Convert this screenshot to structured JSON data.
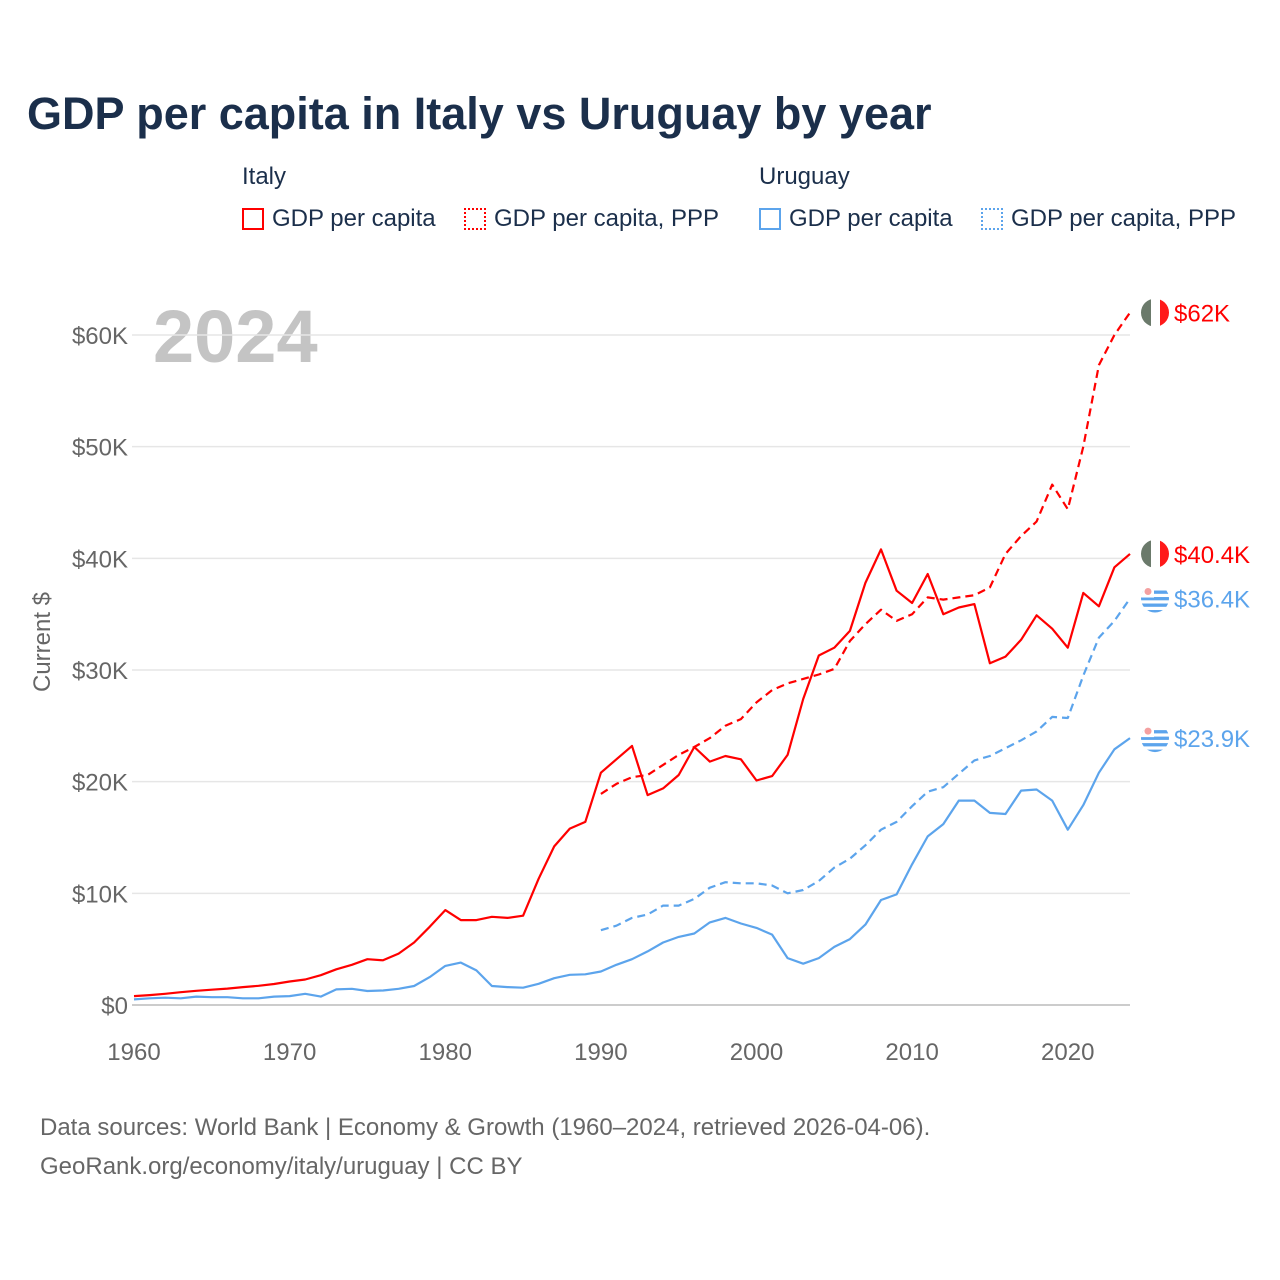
{
  "chart_data": {
    "type": "line",
    "title": "GDP per capita in Italy vs Uruguay by year",
    "ylabel": "Current $",
    "xlabel": "",
    "year_watermark": "2024",
    "xlim": [
      1960,
      2024
    ],
    "ylim": [
      0,
      62000
    ],
    "x_ticks": [
      1960,
      1970,
      1980,
      1990,
      2000,
      2010,
      2020
    ],
    "x_tick_labels": [
      "1960",
      "1970",
      "1980",
      "1990",
      "2000",
      "2010",
      "2020"
    ],
    "y_ticks": [
      0,
      10000,
      20000,
      30000,
      40000,
      50000,
      60000
    ],
    "y_tick_labels": [
      "$0",
      "$10K",
      "$20K",
      "$30K",
      "$40K",
      "$50K",
      "$60K"
    ],
    "grid": true,
    "legend": {
      "groups": [
        {
          "name": "Italy",
          "items": [
            "GDP per capita",
            "GDP per capita, PPP"
          ]
        },
        {
          "name": "Uruguay",
          "items": [
            "GDP per capita",
            "GDP per capita, PPP"
          ]
        }
      ]
    },
    "colors": {
      "Italy": "#ff0000",
      "Uruguay": "#5ca4ec"
    },
    "series": [
      {
        "name": "Italy GDP per capita",
        "country": "Italy",
        "dashed": false,
        "start_year": 1960,
        "end_label": "$40.4K",
        "values": [
          800,
          890,
          1000,
          1150,
          1270,
          1370,
          1470,
          1600,
          1720,
          1880,
          2100,
          2280,
          2670,
          3200,
          3600,
          4100,
          4000,
          4600,
          5600,
          7000,
          8500,
          7600,
          7600,
          7900,
          7800,
          8000,
          11300,
          14200,
          15800,
          16400,
          20800,
          22000,
          23200,
          18800,
          19400,
          20600,
          23100,
          21800,
          22300,
          22000,
          20100,
          20500,
          22400,
          27400,
          31300,
          32000,
          33500,
          37800,
          40800,
          37100,
          36000,
          38600,
          35000,
          35600,
          35900,
          30600,
          31200,
          32700,
          34900,
          33700,
          32000,
          36900,
          35700,
          39200,
          40400
        ]
      },
      {
        "name": "Italy GDP per capita, PPP",
        "country": "Italy",
        "dashed": true,
        "start_year": 1990,
        "end_label": "$62K",
        "values": [
          18900,
          19800,
          20400,
          20600,
          21500,
          22400,
          23100,
          23900,
          25000,
          25600,
          27100,
          28200,
          28800,
          29200,
          29600,
          30100,
          32600,
          34100,
          35400,
          34400,
          35000,
          36500,
          36300,
          36500,
          36700,
          37400,
          40400,
          42000,
          43300,
          46600,
          44400,
          50000,
          57300,
          60000,
          62000
        ]
      },
      {
        "name": "Uruguay GDP per capita",
        "country": "Uruguay",
        "dashed": false,
        "start_year": 1960,
        "end_label": "$23.9K",
        "values": [
          500,
          600,
          650,
          600,
          750,
          700,
          700,
          600,
          600,
          750,
          800,
          1000,
          750,
          1400,
          1450,
          1250,
          1300,
          1450,
          1700,
          2500,
          3500,
          3800,
          3100,
          1700,
          1600,
          1550,
          1900,
          2400,
          2700,
          2750,
          3000,
          3600,
          4100,
          4800,
          5600,
          6100,
          6400,
          7400,
          7800,
          7300,
          6900,
          6300,
          4200,
          3700,
          4200,
          5200,
          5900,
          7200,
          9400,
          9900,
          12600,
          15100,
          16200,
          18300,
          18300,
          17200,
          17100,
          19200,
          19300,
          18300,
          15700,
          17900,
          20800,
          22900,
          23900
        ]
      },
      {
        "name": "Uruguay GDP per capita, PPP",
        "country": "Uruguay",
        "dashed": true,
        "start_year": 1990,
        "end_label": "$36.4K",
        "values": [
          6700,
          7100,
          7800,
          8100,
          8900,
          8900,
          9500,
          10500,
          11000,
          10900,
          10900,
          10700,
          10000,
          10300,
          11100,
          12300,
          13100,
          14300,
          15700,
          16400,
          17800,
          19100,
          19500,
          20700,
          21900,
          22300,
          23000,
          23700,
          24500,
          25800,
          25700,
          29500,
          32900,
          34400,
          36400
        ]
      }
    ]
  },
  "footer": {
    "line1": "Data sources: World Bank | Economy & Growth (1960–2024, retrieved 2026-04-06).",
    "line2": "GeoRank.org/economy/italy/uruguay | CC BY"
  }
}
